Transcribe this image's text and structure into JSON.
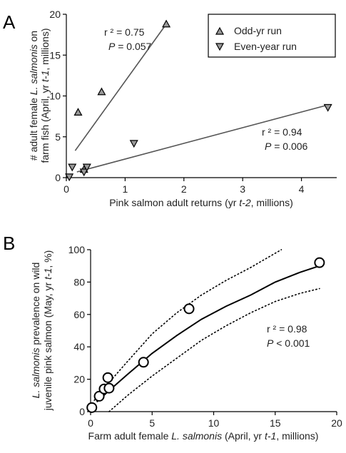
{
  "chart_data": [
    {
      "panel": "A",
      "type": "scatter",
      "xlabel": {
        "pre": "Pink salmon adult returns (yr ",
        "italic": "t-2",
        "post": ", millions)"
      },
      "ylabel": {
        "line1_pre": "# adult female ",
        "line1_italic": "L. salmonis",
        "line1_post": " on",
        "line2_pre": "farm fish (April, yr ",
        "line2_italic": "t-1",
        "line2_post": ", millions)"
      },
      "xlim": [
        0,
        4.6
      ],
      "ylim": [
        0,
        20
      ],
      "xticks": [
        "0",
        "1",
        "2",
        "3",
        "4"
      ],
      "yticks": [
        "0",
        "5",
        "10",
        "15",
        "20"
      ],
      "legend_position": "top-right",
      "series": [
        {
          "name": "Odd-yr run",
          "marker": "triangle-up",
          "points": [
            [
              0.2,
              8.0
            ],
            [
              0.3,
              1.0
            ],
            [
              0.6,
              10.5
            ],
            [
              1.7,
              18.8
            ]
          ],
          "fit": {
            "x": [
              0.15,
              1.7
            ],
            "y": [
              3.3,
              18.8
            ]
          },
          "r2_label": "r ² = 0.75",
          "p_label_pre": "P",
          "p_label_post": " = 0.057"
        },
        {
          "name": "Even-year run",
          "marker": "triangle-down",
          "points": [
            [
              0.05,
              0.1
            ],
            [
              0.1,
              1.3
            ],
            [
              0.3,
              0.7
            ],
            [
              0.35,
              1.3
            ],
            [
              1.15,
              4.2
            ],
            [
              4.45,
              8.6
            ]
          ],
          "fit": {
            "x": [
              0.18,
              4.45
            ],
            "y": [
              0.7,
              8.9
            ]
          },
          "r2_label": "r ² = 0.94",
          "p_label_pre": "P",
          "p_label_post": " = 0.006"
        }
      ]
    },
    {
      "panel": "B",
      "type": "scatter",
      "xlabel": {
        "pre": "Farm adult female ",
        "italic": "L. salmonis",
        "post": " (April, yr ",
        "italic2": "t-1",
        "post2": ", millions)"
      },
      "ylabel": {
        "line1_pre": "",
        "line1_italic": "L. salmonis",
        "line1_post": " prevalence on wild",
        "line2_pre": "juvenile pink salmon (May, yr ",
        "line2_italic": "t-1",
        "line2_post": ", %)"
      },
      "xlim": [
        0,
        20
      ],
      "ylim": [
        0,
        100
      ],
      "xticks": [
        "0",
        "5",
        "10",
        "15",
        "20"
      ],
      "yticks": [
        "0",
        "20",
        "40",
        "60",
        "80",
        "100"
      ],
      "points": [
        [
          0.1,
          2.5
        ],
        [
          0.7,
          9.5
        ],
        [
          1.1,
          14.0
        ],
        [
          1.4,
          21.0
        ],
        [
          1.5,
          14.5
        ],
        [
          4.3,
          30.5
        ],
        [
          8.0,
          63.5
        ],
        [
          18.6,
          92.0
        ]
      ],
      "fit_curve": {
        "x": [
          0.5,
          1.5,
          3,
          5,
          7,
          9,
          11,
          13,
          15,
          17,
          18.6
        ],
        "y": [
          6,
          13,
          23,
          36,
          47,
          57,
          65,
          72,
          80,
          86,
          90
        ]
      },
      "ci_upper": {
        "x": [
          0.3,
          1.5,
          3,
          5,
          7,
          9,
          11,
          13,
          15.5
        ],
        "y": [
          7,
          18,
          31,
          48,
          61,
          72,
          81,
          89,
          100
        ]
      },
      "ci_lower": {
        "x": [
          1.5,
          3,
          5,
          7,
          9,
          11,
          13,
          15,
          17,
          18.6
        ],
        "y": [
          0,
          10,
          22,
          33,
          44,
          53,
          61,
          68,
          73,
          76
        ]
      },
      "r2_label": "r ² = 0.98",
      "p_label_pre": "P",
      "p_label_post": " < 0.001"
    }
  ]
}
